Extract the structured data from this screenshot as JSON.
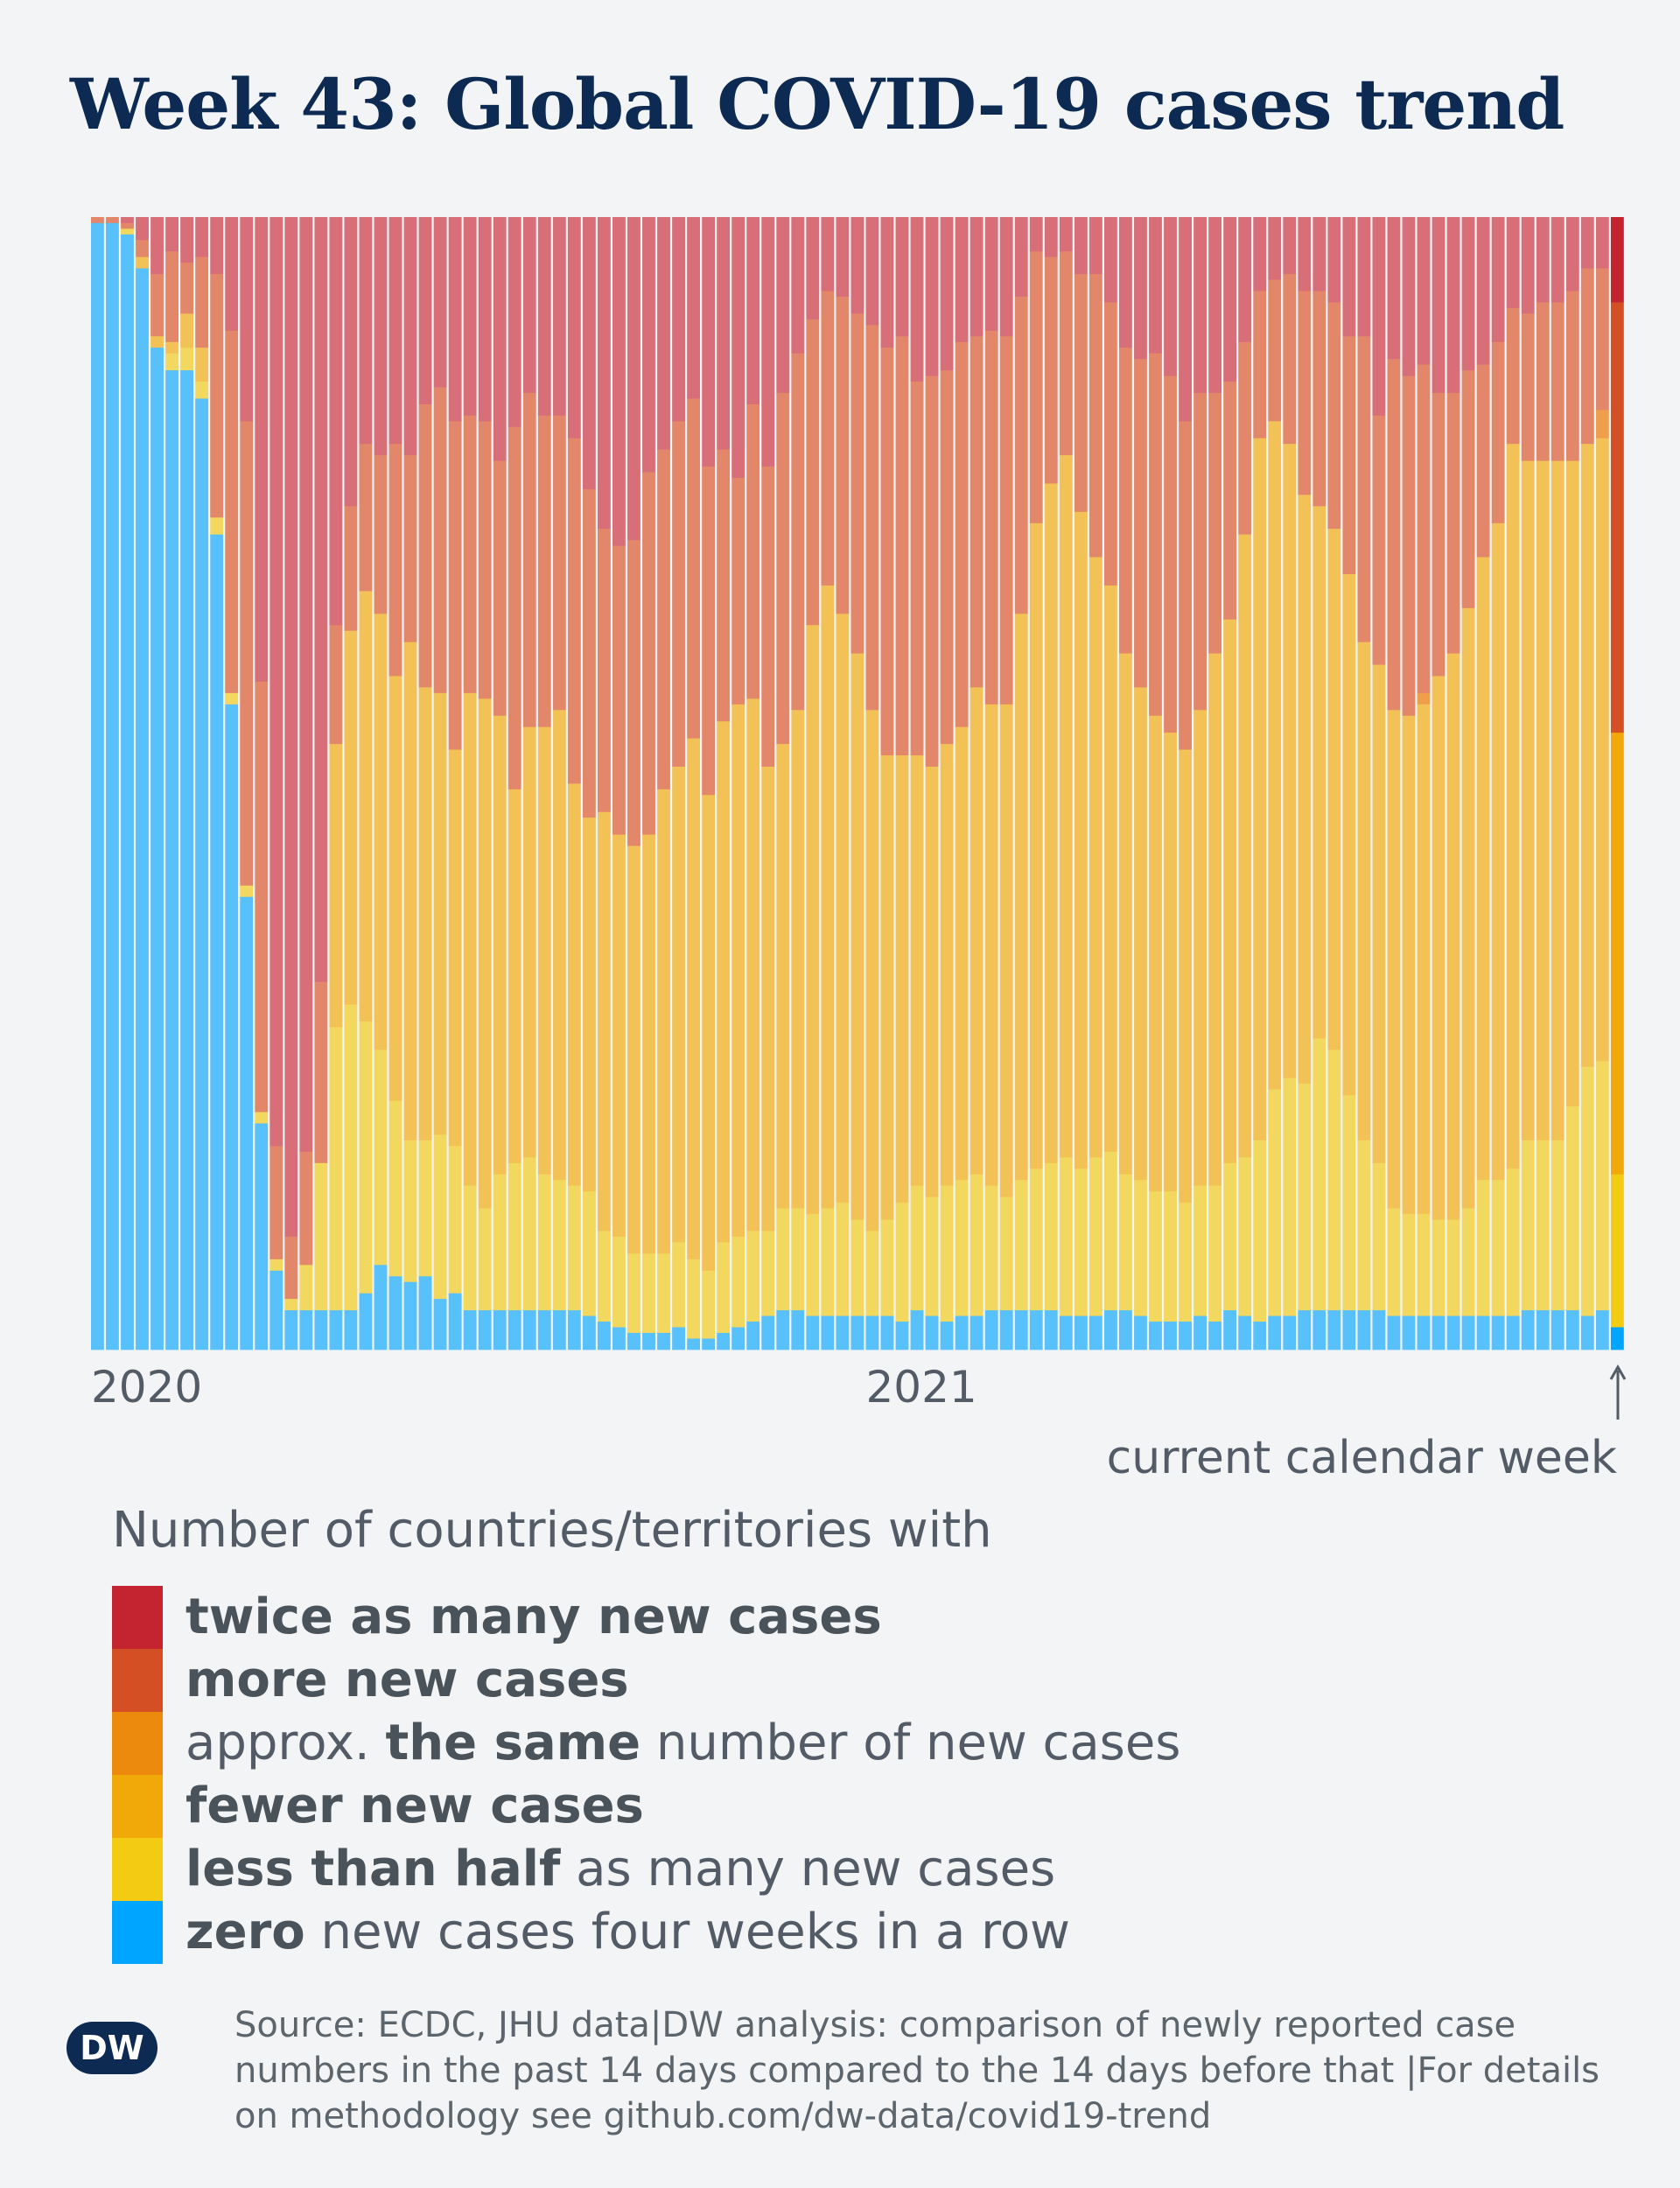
{
  "title": "Week 43: Global COVID-19 cases trend",
  "current_week_label": "current calendar week",
  "legend": {
    "title": "Number of countries/territories with",
    "items": [
      {
        "key": "twice",
        "color": "#c42330",
        "pre": "",
        "bold": "twice as many new cases",
        "post": ""
      },
      {
        "key": "more",
        "color": "#d44f23",
        "pre": "",
        "bold": "more new cases",
        "post": ""
      },
      {
        "key": "same",
        "color": "#ec8a0d",
        "pre": "approx. ",
        "bold": "the same",
        "post": " number of new cases"
      },
      {
        "key": "fewer",
        "color": "#f1a90a",
        "pre": "",
        "bold": "fewer new cases",
        "post": ""
      },
      {
        "key": "half",
        "color": "#f3cb13",
        "pre": "",
        "bold": "less than half",
        "post": " as many new cases"
      },
      {
        "key": "zero",
        "color": "#00a5ff",
        "pre": "",
        "bold": "zero",
        "post": " new cases four weeks in a row"
      }
    ]
  },
  "source": "Source: ECDC, JHU data|DW analysis: comparison of newly reported case numbers in the past 14 days compared to the 14 days before that |For details on methodology see github.com/dw-data/covid19-trend",
  "logo_text": "DW",
  "chart_data": {
    "type": "bar",
    "stacked": true,
    "normalized_to": 100,
    "x_tick_labels": [
      {
        "label": "2020",
        "week_index": 0
      },
      {
        "label": "2021",
        "week_index": 52
      }
    ],
    "highlight_last_bar": true,
    "series_order_bottom_to_top": [
      "zero",
      "half",
      "fewer",
      "same",
      "more",
      "twice"
    ],
    "weekly_shares_percent": [
      [
        99.5,
        0,
        0,
        0,
        0.5,
        0
      ],
      [
        99.5,
        0,
        0,
        0,
        0.5,
        0
      ],
      [
        98.5,
        0.5,
        0,
        0,
        0.5,
        0.5
      ],
      [
        95.5,
        0,
        1,
        0,
        1.5,
        2
      ],
      [
        88.5,
        0,
        1,
        0,
        5.5,
        5
      ],
      [
        86.5,
        1.5,
        1,
        0,
        8,
        3
      ],
      [
        86.5,
        2,
        3,
        0,
        4.5,
        4
      ],
      [
        84,
        1.5,
        3,
        0,
        8,
        3.5
      ],
      [
        72,
        1.5,
        0,
        0,
        21.5,
        5
      ],
      [
        57,
        1,
        0,
        0,
        32,
        10
      ],
      [
        40,
        1,
        0,
        0,
        41,
        18
      ],
      [
        20,
        1,
        0,
        0,
        38,
        41
      ],
      [
        7,
        1,
        0,
        0,
        10,
        82
      ],
      [
        3.5,
        1,
        0,
        0,
        5.5,
        90
      ],
      [
        3.5,
        4,
        0,
        0,
        10,
        82.5
      ],
      [
        3.5,
        13,
        0,
        0,
        16,
        67.5
      ],
      [
        3.5,
        25,
        25,
        0,
        10.5,
        36
      ],
      [
        3.5,
        27,
        33,
        0,
        11,
        25.5
      ],
      [
        5,
        24,
        38,
        0,
        13,
        20
      ],
      [
        7.5,
        19,
        38.5,
        0,
        14,
        21
      ],
      [
        6.5,
        15.5,
        37.5,
        0,
        20.5,
        20
      ],
      [
        6,
        12.5,
        44,
        0,
        16.5,
        21
      ],
      [
        6.5,
        12,
        40,
        0,
        25,
        16.5
      ],
      [
        4.5,
        14.5,
        39,
        0,
        27,
        15
      ],
      [
        5,
        13,
        35,
        0,
        29,
        18
      ],
      [
        3.5,
        11,
        43.5,
        0,
        24.5,
        17.5
      ],
      [
        3.5,
        9,
        45,
        0,
        24.5,
        18
      ],
      [
        3.5,
        12,
        40.5,
        0,
        22.5,
        21.5
      ],
      [
        3.5,
        13,
        33,
        0,
        32,
        18.5
      ],
      [
        3.5,
        13.5,
        38,
        0,
        29.5,
        15.5
      ],
      [
        3.5,
        12,
        39.5,
        0,
        27.5,
        17.5
      ],
      [
        3.5,
        11.5,
        41.5,
        0,
        26,
        17.5
      ],
      [
        3.5,
        11,
        35.5,
        0,
        30.5,
        19.5
      ],
      [
        3,
        11,
        33,
        0,
        29,
        24
      ],
      [
        2.5,
        8,
        37,
        0,
        25,
        27.5
      ],
      [
        2,
        8,
        35.5,
        0,
        25.5,
        29
      ],
      [
        1.5,
        7,
        36,
        0,
        27,
        28.5
      ],
      [
        1.5,
        7,
        37,
        0,
        32,
        22.5
      ],
      [
        1.5,
        7,
        41,
        0,
        30,
        20.5
      ],
      [
        2,
        7.5,
        42,
        0,
        30.5,
        18
      ],
      [
        1,
        7,
        46,
        0,
        30,
        16
      ],
      [
        1,
        6,
        42,
        0,
        29,
        22
      ],
      [
        1.5,
        8,
        46,
        0,
        24,
        20.5
      ],
      [
        2,
        8,
        47,
        0,
        20,
        23
      ],
      [
        2.5,
        8,
        47,
        0,
        26,
        16.5
      ],
      [
        3,
        7.5,
        41,
        0,
        26.5,
        22
      ],
      [
        3.5,
        9,
        41,
        0,
        31,
        15.5
      ],
      [
        3.5,
        9,
        44,
        0,
        31.5,
        12
      ],
      [
        3,
        9,
        52,
        0,
        27,
        9
      ],
      [
        3,
        9.5,
        55,
        0,
        26,
        6.5
      ],
      [
        3,
        10,
        52,
        0,
        28,
        7
      ],
      [
        3,
        8.5,
        50,
        0,
        30,
        8.5
      ],
      [
        3,
        7.5,
        46,
        0,
        34,
        9.5
      ],
      [
        3,
        8.5,
        41,
        0,
        36,
        11.5
      ],
      [
        2.5,
        10.5,
        39.5,
        0,
        37,
        10.5
      ],
      [
        3.5,
        11,
        38,
        0,
        33,
        14.5
      ],
      [
        3,
        10.5,
        38,
        0,
        34.5,
        14
      ],
      [
        2.5,
        12,
        39,
        0,
        33,
        13.5
      ],
      [
        3,
        12,
        40,
        0,
        34,
        11
      ],
      [
        3,
        12.5,
        43,
        0,
        31,
        10.5
      ],
      [
        3.5,
        11,
        42.5,
        0,
        33,
        10
      ],
      [
        3.5,
        10,
        43.5,
        0,
        32.5,
        10.5
      ],
      [
        3.5,
        11.5,
        50,
        0,
        28,
        7
      ],
      [
        3.5,
        12.5,
        57,
        0,
        24,
        3
      ],
      [
        3.5,
        13,
        60,
        0,
        20,
        3.5
      ],
      [
        3,
        14,
        62,
        0,
        18,
        3
      ],
      [
        3,
        13,
        58,
        0,
        21,
        5
      ],
      [
        3,
        14,
        53,
        0,
        25,
        5
      ],
      [
        3.5,
        14,
        50,
        0,
        25,
        7.5
      ],
      [
        3.5,
        12,
        46,
        0,
        27,
        11.5
      ],
      [
        3,
        12,
        43.5,
        0,
        29,
        12.5
      ],
      [
        2.5,
        11.5,
        42,
        0,
        32,
        12
      ],
      [
        2.5,
        11.5,
        40.5,
        0,
        31.5,
        14
      ],
      [
        2.5,
        10.5,
        40,
        0,
        29,
        18
      ],
      [
        3,
        11.5,
        42,
        0,
        28,
        15.5
      ],
      [
        2.5,
        12,
        47,
        0,
        23,
        15.5
      ],
      [
        3.5,
        13,
        48,
        0,
        21,
        14.5
      ],
      [
        3,
        14,
        55,
        0,
        17,
        11
      ],
      [
        2.5,
        16,
        62,
        0,
        13,
        6.5
      ],
      [
        3,
        20,
        59,
        0,
        12.5,
        5.5
      ],
      [
        3,
        21,
        56,
        0,
        15,
        5
      ],
      [
        3.5,
        20,
        52,
        0,
        18,
        6.5
      ],
      [
        3.5,
        24,
        47,
        0,
        19,
        6.5
      ],
      [
        3.5,
        23,
        46,
        0,
        20,
        7.5
      ],
      [
        3.5,
        19,
        46,
        0,
        21,
        10.5
      ],
      [
        3.5,
        15,
        44,
        0,
        27,
        10.5
      ],
      [
        3.5,
        13,
        44,
        0,
        22,
        17.5
      ],
      [
        3,
        9.5,
        44,
        0,
        31,
        12.5
      ],
      [
        3,
        9,
        44,
        0,
        30,
        14
      ],
      [
        3,
        9,
        45,
        1,
        29,
        13
      ],
      [
        3,
        8.5,
        48,
        0,
        25,
        15.5
      ],
      [
        3,
        8.5,
        50,
        0,
        23,
        15.5
      ],
      [
        3,
        9.5,
        53,
        0,
        21,
        13.5
      ],
      [
        3,
        12,
        55,
        0,
        17,
        13
      ],
      [
        3,
        12,
        58,
        0,
        16,
        11
      ],
      [
        3,
        13,
        64,
        0,
        12,
        8
      ],
      [
        3.5,
        15,
        60,
        0,
        13,
        8.5
      ],
      [
        3.5,
        15,
        60,
        0,
        14,
        7.5
      ],
      [
        3.5,
        15,
        60,
        0,
        14,
        7.5
      ],
      [
        3.5,
        18,
        57,
        0,
        15,
        6.5
      ],
      [
        3,
        22,
        55,
        0,
        15.5,
        4.5
      ],
      [
        3.5,
        22,
        55,
        2.5,
        12.5,
        4.5
      ],
      [
        2,
        13.5,
        39,
        0,
        38,
        7.5
      ]
    ]
  }
}
